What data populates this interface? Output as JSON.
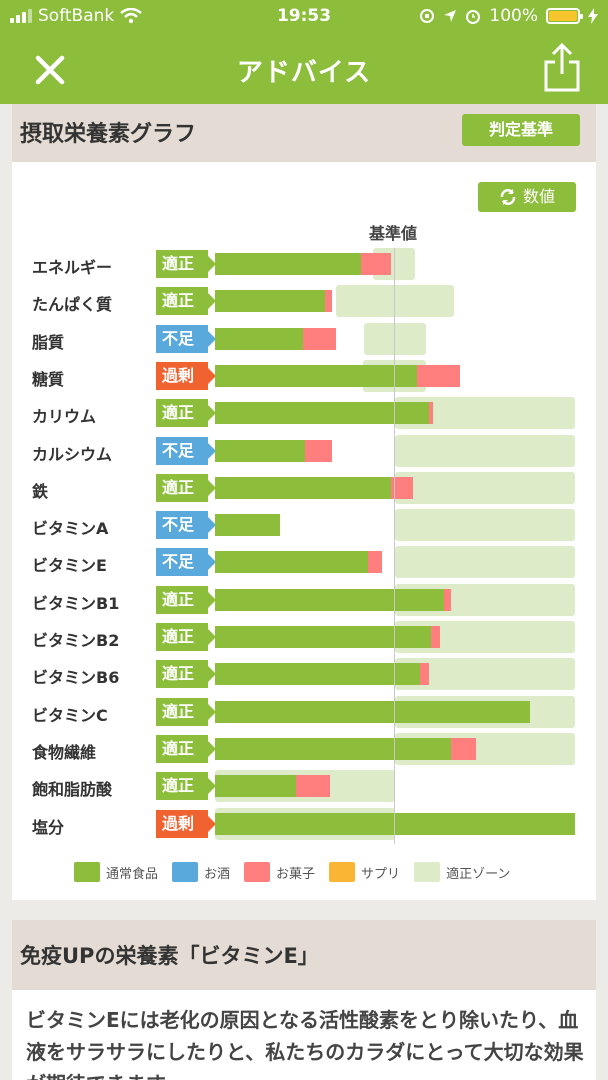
{
  "status_bar": {
    "carrier": "SoftBank",
    "time": "19:53",
    "battery": "100%"
  },
  "nav": {
    "title": "アドバイス",
    "close_icon": "close-icon",
    "share_icon": "share-icon"
  },
  "card_header": {
    "title": "摂取栄養素グラフ",
    "criteria_button": "判定基準"
  },
  "chart": {
    "value_button": "数値",
    "baseline_label": "基準値"
  },
  "colors": {
    "accent": "#8cbd3b",
    "status_ok": "#8cbd3b",
    "status_low": "#5aa9dc",
    "status_excess": "#f06330",
    "sweets": "#ff7f7f",
    "zone": "#deebc9"
  },
  "chart_data": {
    "type": "bar",
    "note_units": "percent of recommended standard (standard = 100)",
    "categories": [
      "エネルギー",
      "たんぱく質",
      "脂質",
      "糖質",
      "カリウム",
      "カルシウム",
      "鉄",
      "ビタミンA",
      "ビタミンE",
      "ビタミンB1",
      "ビタミンB2",
      "ビタミンB6",
      "ビタミンC",
      "食物繊維",
      "飽和脂肪酸",
      "塩分"
    ],
    "status": [
      "適正",
      "適正",
      "不足",
      "過剰",
      "適正",
      "不足",
      "適正",
      "不足",
      "不足",
      "適正",
      "適正",
      "適正",
      "適正",
      "適正",
      "適正",
      "過剰"
    ],
    "series": [
      {
        "name": "通常食品",
        "values": [
          81,
          61,
          49,
          112,
          119,
          50,
          98,
          36,
          85,
          127,
          120,
          114,
          175,
          131,
          45,
          200
        ]
      },
      {
        "name": "お酒",
        "values": [
          0,
          0,
          0,
          0,
          0,
          0,
          0,
          0,
          0,
          0,
          0,
          0,
          0,
          0,
          0,
          0
        ]
      },
      {
        "name": "お菓子",
        "values": [
          17,
          4,
          18,
          24,
          2,
          15,
          12,
          0,
          8,
          4,
          5,
          5,
          0,
          14,
          19,
          0
        ]
      },
      {
        "name": "サプリ",
        "values": [
          0,
          0,
          0,
          0,
          0,
          0,
          0,
          0,
          0,
          0,
          0,
          0,
          0,
          0,
          0,
          0
        ]
      }
    ],
    "zones": [
      [
        88,
        111
      ],
      [
        67,
        133
      ],
      [
        83,
        117
      ],
      [
        82,
        117
      ],
      [
        100,
        200
      ],
      [
        100,
        200
      ],
      [
        100,
        200
      ],
      [
        100,
        200
      ],
      [
        100,
        200
      ],
      [
        100,
        200
      ],
      [
        100,
        200
      ],
      [
        100,
        200
      ],
      [
        100,
        200
      ],
      [
        100,
        200
      ],
      [
        0,
        100
      ],
      [
        0,
        100
      ]
    ],
    "legend": [
      "通常食品",
      "お酒",
      "お菓子",
      "サプリ",
      "適正ゾーン"
    ],
    "legend_colors": [
      "#8cbd3b",
      "#5aa9dc",
      "#ff7f7f",
      "#fbb534",
      "#deebc9"
    ],
    "xlim": [
      0,
      200
    ]
  },
  "section": {
    "title": "免疫UPの栄養素「ビタミンE」"
  },
  "article": {
    "text": "ビタミンEには老化の原因となる活性酸素をとり除いたり、血液をサラサラにしたりと、私たちのカラダにとって大切な効果が期待できます。"
  }
}
